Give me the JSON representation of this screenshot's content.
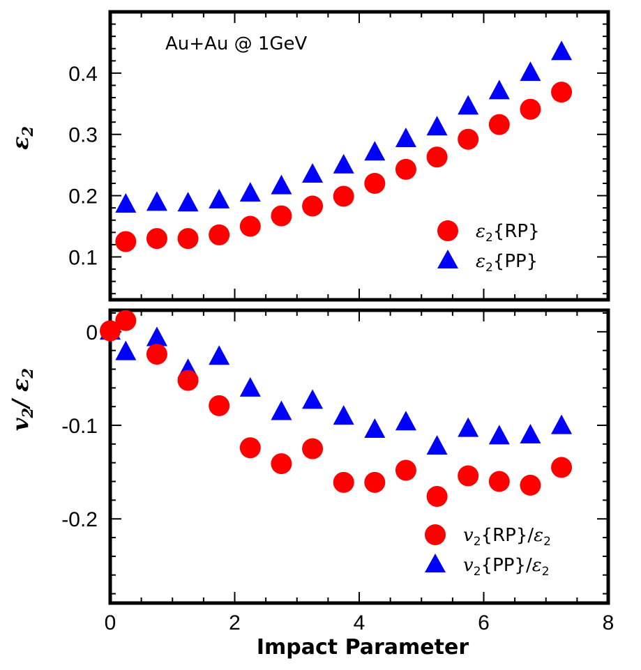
{
  "chart_data": [
    {
      "type": "scatter",
      "title": "",
      "annotation": "Au+Au @ 1GeV",
      "ylabel": "ε",
      "ylabel_sub": "2",
      "xlabel": "",
      "xlim": [
        0,
        8
      ],
      "ylim": [
        0.03,
        0.5
      ],
      "yticks": [
        0.1,
        0.2,
        0.3,
        0.4
      ],
      "ytick_labels": [
        "0.1",
        "0.2",
        "0.3",
        "0.4"
      ],
      "x": [
        0.25,
        0.75,
        1.25,
        1.75,
        2.25,
        2.75,
        3.25,
        3.75,
        4.25,
        4.75,
        5.25,
        5.75,
        6.25,
        6.75,
        7.25
      ],
      "series": [
        {
          "name": "ε2{RP}",
          "legend_main": "ε",
          "legend_sub": "2",
          "legend_rest": "{RP}",
          "marker": "circle",
          "color": "#ff0000",
          "values": [
            0.125,
            0.13,
            0.13,
            0.136,
            0.15,
            0.167,
            0.183,
            0.199,
            0.22,
            0.243,
            0.263,
            0.292,
            0.316,
            0.341,
            0.369
          ]
        },
        {
          "name": "ε2{PP}",
          "legend_main": "ε",
          "legend_sub": "2",
          "legend_rest": "{PP}",
          "marker": "triangle",
          "color": "#0000ff",
          "values": [
            0.185,
            0.188,
            0.187,
            0.192,
            0.203,
            0.215,
            0.234,
            0.249,
            0.27,
            0.292,
            0.311,
            0.345,
            0.37,
            0.4,
            0.434
          ]
        }
      ]
    },
    {
      "type": "scatter",
      "title": "",
      "ylabel": "v",
      "ylabel_sub": "2",
      "ylabel_rest": "/ ε",
      "ylabel_sub2": "2",
      "xlabel": "Impact Parameter",
      "xlim": [
        0,
        8
      ],
      "xticks": [
        0,
        2,
        4,
        6,
        8
      ],
      "xtick_labels": [
        "0",
        "2",
        "4",
        "6",
        "8"
      ],
      "ylim": [
        -0.29,
        0.023
      ],
      "yticks": [
        -0.2,
        -0.1,
        0
      ],
      "ytick_labels": [
        "-0.2",
        "-0.1",
        "0"
      ],
      "x": [
        0.0,
        0.25,
        0.75,
        1.25,
        1.75,
        2.25,
        2.75,
        3.25,
        3.75,
        4.25,
        4.75,
        5.25,
        5.75,
        6.25,
        6.75,
        7.25
      ],
      "series": [
        {
          "name": "v2{RP}/ε2",
          "legend_main": "v",
          "legend_sub": "2",
          "legend_rest": "{RP}/",
          "legend_main2": "ε",
          "legend_sub2": "2",
          "marker": "circle",
          "color": "#ff0000",
          "values": [
            0.001,
            0.012,
            -0.024,
            -0.052,
            -0.079,
            -0.124,
            -0.141,
            -0.125,
            -0.161,
            -0.161,
            -0.148,
            -0.176,
            -0.154,
            -0.16,
            -0.164,
            -0.145
          ]
        },
        {
          "name": "v2{PP}/ε2",
          "legend_main": "v",
          "legend_sub": "2",
          "legend_rest": "{PP}/",
          "legend_main2": "ε",
          "legend_sub2": "2",
          "marker": "triangle",
          "color": "#0000ff",
          "values": [
            0.0,
            -0.022,
            -0.007,
            -0.041,
            -0.027,
            -0.061,
            -0.086,
            -0.074,
            -0.091,
            -0.105,
            -0.097,
            -0.123,
            -0.104,
            -0.112,
            -0.111,
            -0.101
          ]
        }
      ]
    }
  ]
}
